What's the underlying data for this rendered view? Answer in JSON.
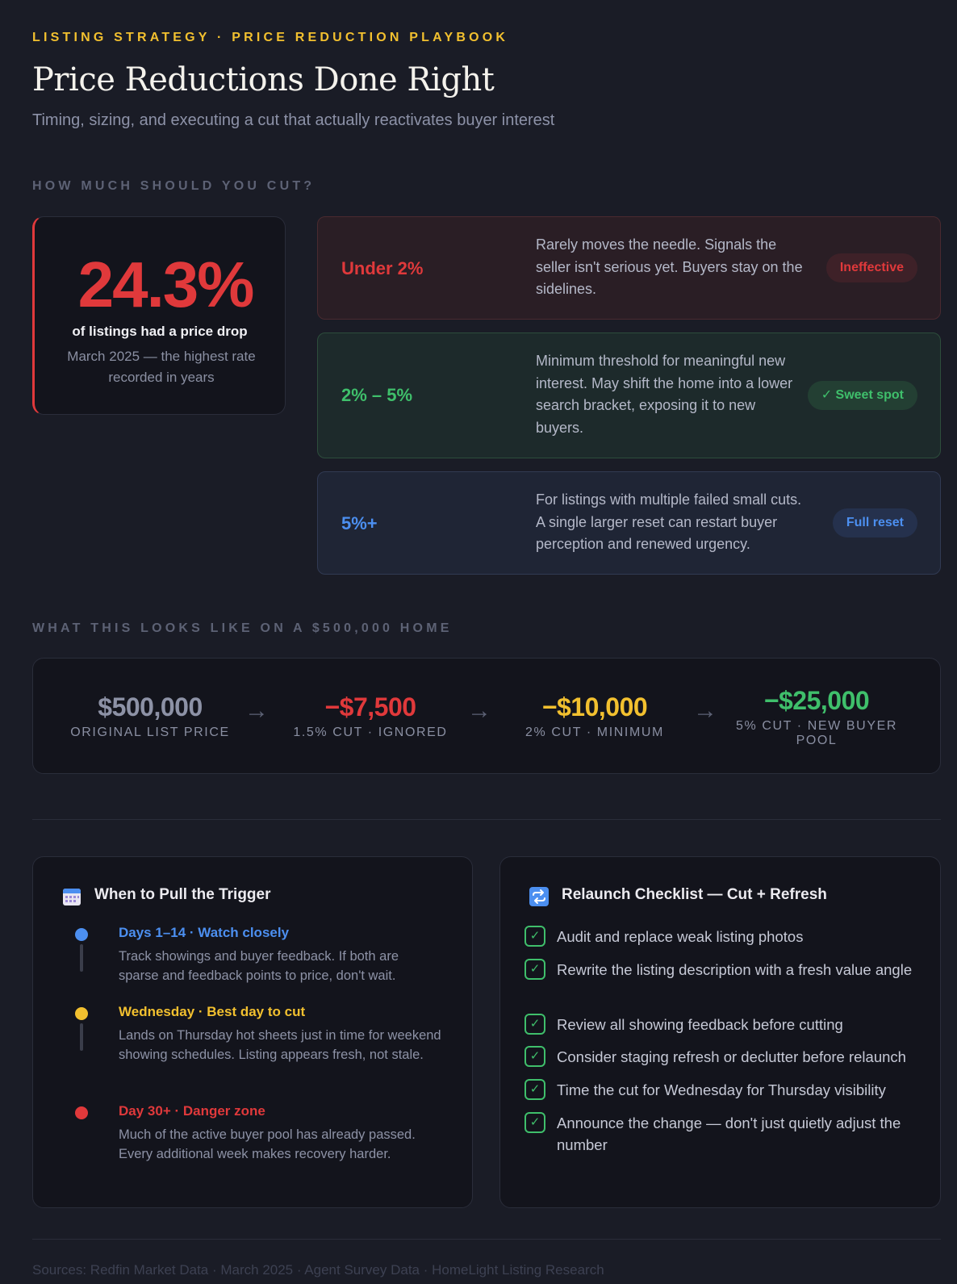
{
  "header": {
    "eyebrow": "LISTING STRATEGY · PRICE REDUCTION PLAYBOOK",
    "title": "Price Reductions Done Right",
    "subtitle": "Timing, sizing, and executing a cut that actually reactivates buyer interest"
  },
  "section1_label": "HOW MUCH SHOULD YOU CUT?",
  "stat": {
    "value": "24.3%",
    "caption": "of listings had a price drop",
    "note": "March 2025 — the highest rate recorded in years"
  },
  "tiers": [
    {
      "label": "Under 2%",
      "desc": "Rarely moves the needle. Signals the seller isn't serious yet. Buyers stay on the sidelines.",
      "badge": "Ineffective"
    },
    {
      "label": "2% – 5%",
      "desc": "Minimum threshold for meaningful new interest. May shift the home into a lower search bracket, exposing it to new buyers.",
      "badge": "✓ Sweet spot"
    },
    {
      "label": "5%+",
      "desc": "For listings with multiple failed small cuts. A single larger reset can restart buyer perception and renewed urgency.",
      "badge": "Full reset"
    }
  ],
  "section2_label": "WHAT THIS LOOKS LIKE ON A $500,000 HOME",
  "example": [
    {
      "amount": "$500,000",
      "label": "ORIGINAL LIST PRICE"
    },
    {
      "amount": "−$7,500",
      "label": "1.5% CUT · IGNORED"
    },
    {
      "amount": "−$10,000",
      "label": "2% CUT · MINIMUM"
    },
    {
      "amount": "−$25,000",
      "label": "5% CUT · NEW BUYER POOL"
    }
  ],
  "arrow": "→",
  "timing": {
    "title": "When to Pull the Trigger",
    "items": [
      {
        "head": "Days 1–14 · Watch closely",
        "body": "Track showings and buyer feedback. If both are sparse and feedback points to price, don't wait."
      },
      {
        "head": "Wednesday · Best day to cut",
        "body": "Lands on Thursday hot sheets just in time for weekend showing schedules. Listing appears fresh, not stale."
      },
      {
        "head": "Day 30+ · Danger zone",
        "body": "Much of the active buyer pool has already passed. Every additional week makes recovery harder."
      }
    ]
  },
  "checklist": {
    "title": "Relaunch Checklist — Cut + Refresh",
    "check": "✓",
    "items": [
      "Audit and replace weak listing photos",
      "Rewrite the listing description with a fresh value angle",
      "Review all showing feedback before cutting",
      "Consider staging refresh or declutter before relaunch",
      "Time the cut for Wednesday for Thursday visibility",
      "Announce the change — don't just quietly adjust the number"
    ]
  },
  "sources": "Sources: Redfin Market Data · March 2025 · Agent Survey Data · HomeLight Listing Research",
  "colors": {
    "red": "#e0393b",
    "green": "#3fbf6b",
    "blue": "#4c8ff0",
    "yellow": "#f2c02f"
  }
}
